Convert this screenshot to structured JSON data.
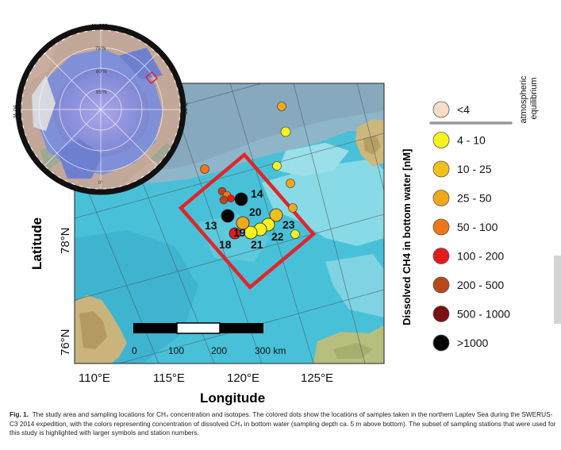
{
  "map": {
    "x_axis_label": "Longitude",
    "y_axis_label": "Latitude",
    "longitude_ticks": [
      {
        "label": "110°E",
        "lon": 110
      },
      {
        "label": "115°E",
        "lon": 115
      },
      {
        "label": "120°E",
        "lon": 120
      },
      {
        "label": "125°E",
        "lon": 125
      }
    ],
    "latitude_ticks": [
      {
        "label": "78°N",
        "lat": 78
      },
      {
        "label": "76°N",
        "lat": 76
      }
    ],
    "scale_bar": {
      "labels": [
        "0",
        "100",
        "200",
        "300 km"
      ]
    },
    "study_area_color": "#e0252b",
    "stations": [
      {
        "label": "14",
        "class": ">1000"
      },
      {
        "label": "20",
        "class": "10 - 25"
      },
      {
        "label": "13",
        "class": ">1000"
      },
      {
        "label": "19",
        "class": "25 - 50"
      },
      {
        "label": "23",
        "class": "10 - 25"
      },
      {
        "label": "18",
        "class": "100 - 200"
      },
      {
        "label": "21",
        "class": "4 - 10"
      },
      {
        "label": "22",
        "class": "4 - 10"
      }
    ]
  },
  "inset": {
    "lat_labels": [
      "75°N",
      "80°N",
      "85°N"
    ],
    "lon_labels": [
      "180°W",
      "90°E",
      "90°W",
      "0°"
    ]
  },
  "legend": {
    "title": "Dissolved CH4 in bottom water [nM]",
    "equilibrium_label": "atmospheric equilibrium",
    "items": [
      {
        "label": "<4",
        "color": "#f8dcc8"
      },
      {
        "label": "4 - 10",
        "color": "#f7f21c"
      },
      {
        "label": "10 - 25",
        "color": "#f2bf1c"
      },
      {
        "label": "25 - 50",
        "color": "#f0a81c"
      },
      {
        "label": "50 - 100",
        "color": "#ee7818"
      },
      {
        "label": "100 - 200",
        "color": "#e51c1c"
      },
      {
        "label": "200 - 500",
        "color": "#b8471a"
      },
      {
        "label": "500 - 1000",
        "color": "#7a1010"
      },
      {
        "label": ">1000",
        "color": "#050505"
      }
    ]
  },
  "caption": {
    "fig_label": "Fig. 1.",
    "text": "The study area and sampling locations for CH₄ concentration and isotopes. The colored dots show the locations of samples taken in the northern Laptev Sea during the SWERUS-C3 2014 expedition, with the colors representing concentration of dissolved CH₄ in bottom water (sampling depth ca. 5 m above bottom). The subset of sampling stations that were used for this study is highlighted with larger symbols and station numbers."
  }
}
